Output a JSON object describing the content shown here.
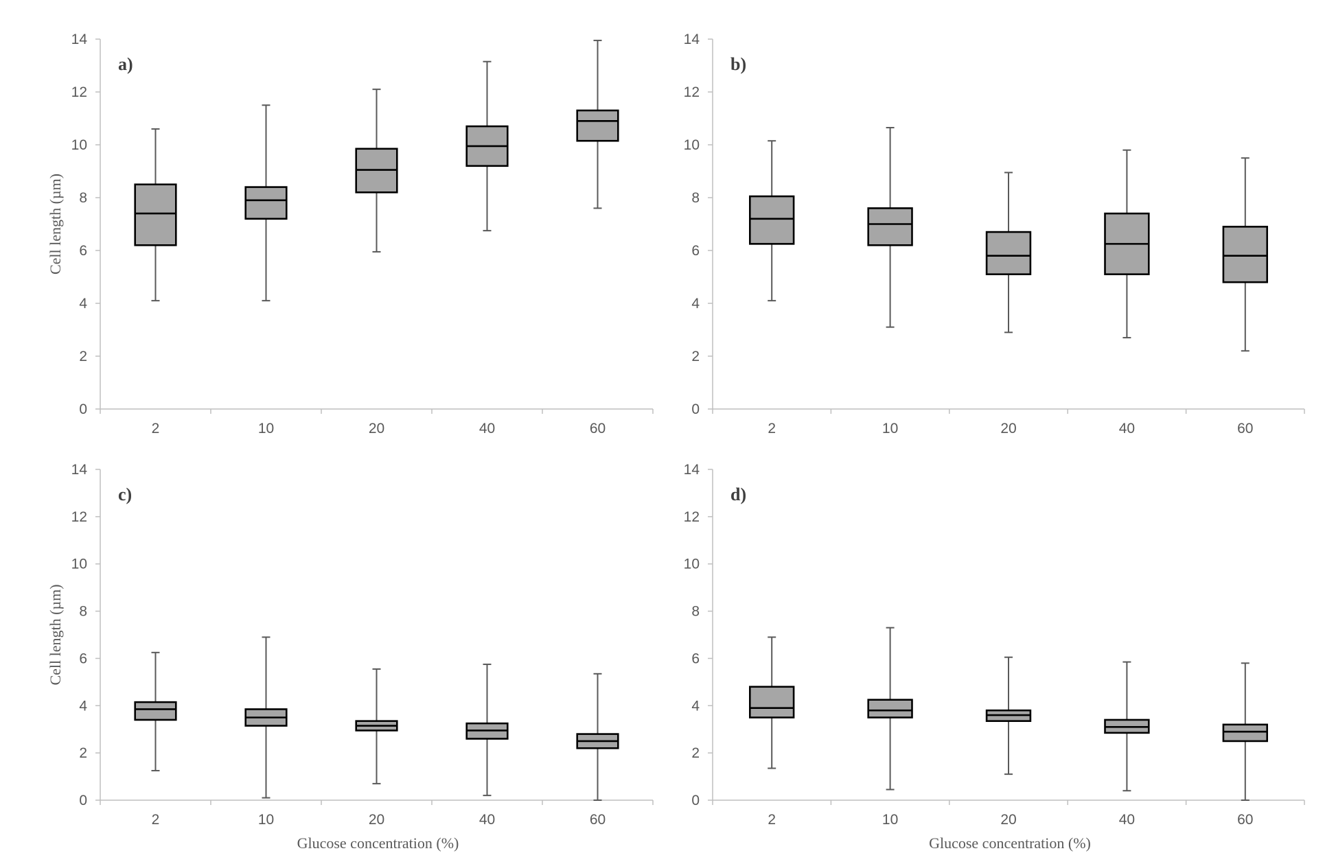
{
  "chart_data": [
    {
      "type": "boxplot",
      "panel_label": "a)",
      "categories": [
        "2",
        "10",
        "20",
        "40",
        "60"
      ],
      "ylabel": "Cell length (µm)",
      "xlabel": "",
      "ylim": [
        0,
        14
      ],
      "yticks": [
        "0",
        "2",
        "4",
        "6",
        "8",
        "10",
        "12",
        "14"
      ],
      "boxes": [
        {
          "min": 4.1,
          "q1": 6.2,
          "median": 7.4,
          "q3": 8.5,
          "max": 10.6
        },
        {
          "min": 4.1,
          "q1": 7.2,
          "median": 7.9,
          "q3": 8.4,
          "max": 11.5
        },
        {
          "min": 5.95,
          "q1": 8.2,
          "median": 9.05,
          "q3": 9.85,
          "max": 12.1
        },
        {
          "min": 6.75,
          "q1": 9.2,
          "median": 9.95,
          "q3": 10.7,
          "max": 13.15
        },
        {
          "min": 7.6,
          "q1": 10.15,
          "median": 10.9,
          "q3": 11.3,
          "max": 13.95
        }
      ]
    },
    {
      "type": "boxplot",
      "panel_label": "b)",
      "categories": [
        "2",
        "10",
        "20",
        "40",
        "60"
      ],
      "ylabel": "",
      "xlabel": "",
      "ylim": [
        0,
        14
      ],
      "yticks": [
        "0",
        "2",
        "4",
        "6",
        "8",
        "10",
        "12",
        "14"
      ],
      "boxes": [
        {
          "min": 4.1,
          "q1": 6.25,
          "median": 7.2,
          "q3": 8.05,
          "max": 10.15
        },
        {
          "min": 3.1,
          "q1": 6.2,
          "median": 7.0,
          "q3": 7.6,
          "max": 10.65
        },
        {
          "min": 2.9,
          "q1": 5.1,
          "median": 5.8,
          "q3": 6.7,
          "max": 8.95
        },
        {
          "min": 2.7,
          "q1": 5.1,
          "median": 6.25,
          "q3": 7.4,
          "max": 9.8
        },
        {
          "min": 2.2,
          "q1": 4.8,
          "median": 5.8,
          "q3": 6.9,
          "max": 9.5
        }
      ]
    },
    {
      "type": "boxplot",
      "panel_label": "c)",
      "categories": [
        "2",
        "10",
        "20",
        "40",
        "60"
      ],
      "ylabel": "Cell length (µm)",
      "xlabel": "Glucose concentration (%)",
      "ylim": [
        0,
        14
      ],
      "yticks": [
        "0",
        "2",
        "4",
        "6",
        "8",
        "10",
        "12",
        "14"
      ],
      "boxes": [
        {
          "min": 1.25,
          "q1": 3.4,
          "median": 3.85,
          "q3": 4.15,
          "max": 6.25
        },
        {
          "min": 0.1,
          "q1": 3.15,
          "median": 3.5,
          "q3": 3.85,
          "max": 6.9
        },
        {
          "min": 0.7,
          "q1": 2.95,
          "median": 3.15,
          "q3": 3.35,
          "max": 5.55
        },
        {
          "min": 0.2,
          "q1": 2.6,
          "median": 2.95,
          "q3": 3.25,
          "max": 5.75
        },
        {
          "min": 0.0,
          "q1": 2.2,
          "median": 2.5,
          "q3": 2.8,
          "max": 5.35
        }
      ]
    },
    {
      "type": "boxplot",
      "panel_label": "d)",
      "categories": [
        "2",
        "10",
        "20",
        "40",
        "60"
      ],
      "ylabel": "",
      "xlabel": "Glucose concentration (%)",
      "ylim": [
        0,
        14
      ],
      "yticks": [
        "0",
        "2",
        "4",
        "6",
        "8",
        "10",
        "12",
        "14"
      ],
      "boxes": [
        {
          "min": 1.35,
          "q1": 3.5,
          "median": 3.9,
          "q3": 4.8,
          "max": 6.9
        },
        {
          "min": 0.45,
          "q1": 3.5,
          "median": 3.8,
          "q3": 4.25,
          "max": 7.3
        },
        {
          "min": 1.1,
          "q1": 3.35,
          "median": 3.6,
          "q3": 3.8,
          "max": 6.05
        },
        {
          "min": 0.4,
          "q1": 2.85,
          "median": 3.1,
          "q3": 3.4,
          "max": 5.85
        },
        {
          "min": 0.0,
          "q1": 2.5,
          "median": 2.9,
          "q3": 3.2,
          "max": 5.8
        }
      ]
    }
  ]
}
